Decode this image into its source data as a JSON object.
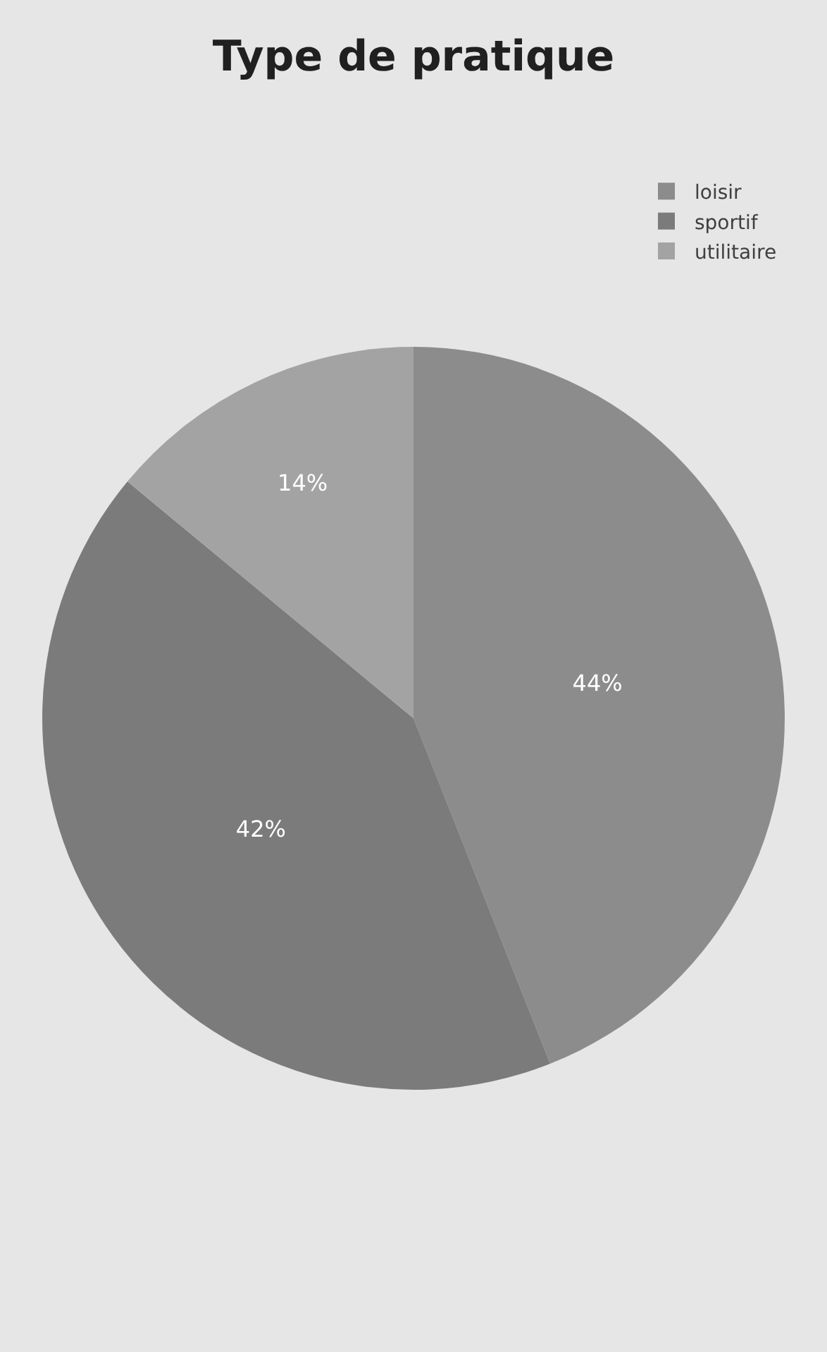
{
  "chart_data": {
    "type": "pie",
    "title": "Type de pratique",
    "categories": [
      "loisir",
      "sportif",
      "utilitaire"
    ],
    "values": [
      44,
      42,
      14
    ],
    "value_labels": [
      "44%",
      "42%",
      "14%"
    ],
    "colors": [
      "#8c8c8c",
      "#7b7b7b",
      "#a3a3a3"
    ],
    "legend": "right"
  }
}
